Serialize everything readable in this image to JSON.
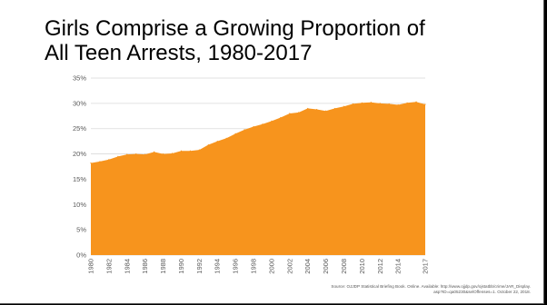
{
  "title_line1": "Girls Comprise a Growing Proportion of",
  "title_line2": "All Teen Arrests, 1980-2017",
  "source_line1": "Source: OJJDP Statistical Briefing Book. Online. Available: http://www.ojjdp.gov/ojstatbb/crime/JAR_Display.",
  "source_line2": "asp?ID=qa05230&selOffenses=1. October 22, 2018.",
  "colors": {
    "area_fill": "#f7941d",
    "gridline": "#d9d9d9",
    "tick_text": "#595959",
    "background": "#ffffff"
  },
  "chart_data": {
    "type": "area",
    "title": "Girls Comprise a Growing Proportion of All Teen Arrests, 1980-2017",
    "xlabel": "",
    "ylabel": "",
    "ylim": [
      0,
      35
    ],
    "yticks": [
      "0%",
      "5%",
      "10%",
      "15%",
      "20%",
      "25%",
      "30%",
      "35%"
    ],
    "xticks": [
      "1980",
      "1982",
      "1984",
      "1986",
      "1988",
      "1990",
      "1992",
      "1994",
      "1996",
      "1998",
      "2000",
      "2002",
      "2004",
      "2006",
      "2008",
      "2010",
      "2012",
      "2014",
      "2017"
    ],
    "grid": true,
    "legend": "none",
    "x": [
      1980,
      1981,
      1982,
      1983,
      1984,
      1985,
      1986,
      1987,
      1988,
      1989,
      1990,
      1991,
      1992,
      1993,
      1994,
      1995,
      1996,
      1997,
      1998,
      1999,
      2000,
      2001,
      2002,
      2003,
      2004,
      2005,
      2006,
      2007,
      2008,
      2009,
      2010,
      2011,
      2012,
      2013,
      2014,
      2015,
      2016,
      2017
    ],
    "values": [
      18.2,
      18.5,
      18.9,
      19.5,
      19.9,
      20.0,
      19.9,
      20.4,
      20.0,
      20.1,
      20.6,
      20.6,
      20.8,
      21.8,
      22.5,
      23.1,
      24.0,
      24.8,
      25.4,
      25.9,
      26.5,
      27.2,
      28.0,
      28.2,
      29.0,
      28.8,
      28.5,
      29.0,
      29.4,
      29.9,
      30.1,
      30.2,
      30.0,
      29.9,
      29.7,
      30.1,
      30.3,
      29.8
    ]
  }
}
